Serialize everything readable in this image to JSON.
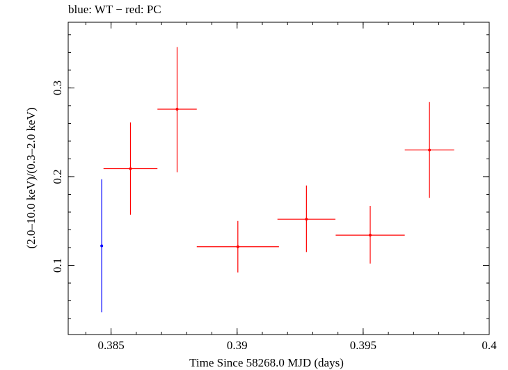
{
  "chart_data": {
    "type": "scatter",
    "title": "blue: WT − red: PC",
    "xlabel": "Time Since 58268.0 MJD (days)",
    "ylabel": "(2.0–10.0 keV)/(0.3–2.0 keV)",
    "xlim": [
      0.3833,
      0.4
    ],
    "ylim": [
      0.022,
      0.374
    ],
    "x_ticks": [
      {
        "value": 0.385,
        "label": "0.385"
      },
      {
        "value": 0.39,
        "label": "0.39"
      },
      {
        "value": 0.395,
        "label": "0.395"
      },
      {
        "value": 0.4,
        "label": "0.4"
      }
    ],
    "y_ticks": [
      {
        "value": 0.1,
        "label": "0.1"
      },
      {
        "value": 0.2,
        "label": "0.2"
      },
      {
        "value": 0.3,
        "label": "0.3"
      }
    ],
    "grid": false,
    "series": [
      {
        "name": "WT",
        "color": "#0000ff",
        "points": [
          {
            "x": 0.38463,
            "y": 0.122,
            "xerr": 5e-05,
            "y_lo": 0.047,
            "y_hi": 0.197
          }
        ]
      },
      {
        "name": "PC",
        "color": "#ff0000",
        "points": [
          {
            "x": 0.38577,
            "y": 0.209,
            "xerr": 0.00107,
            "y_lo": 0.157,
            "y_hi": 0.261
          },
          {
            "x": 0.38762,
            "y": 0.276,
            "xerr": 0.00078,
            "y_lo": 0.205,
            "y_hi": 0.346
          },
          {
            "x": 0.39003,
            "y": 0.121,
            "xerr": 0.00163,
            "y_lo": 0.092,
            "y_hi": 0.15
          },
          {
            "x": 0.39275,
            "y": 0.152,
            "xerr": 0.00115,
            "y_lo": 0.115,
            "y_hi": 0.19
          },
          {
            "x": 0.39528,
            "y": 0.134,
            "xerr": 0.00137,
            "y_lo": 0.102,
            "y_hi": 0.167
          },
          {
            "x": 0.39763,
            "y": 0.23,
            "xerr": 0.00098,
            "y_lo": 0.176,
            "y_hi": 0.284
          }
        ]
      }
    ]
  }
}
